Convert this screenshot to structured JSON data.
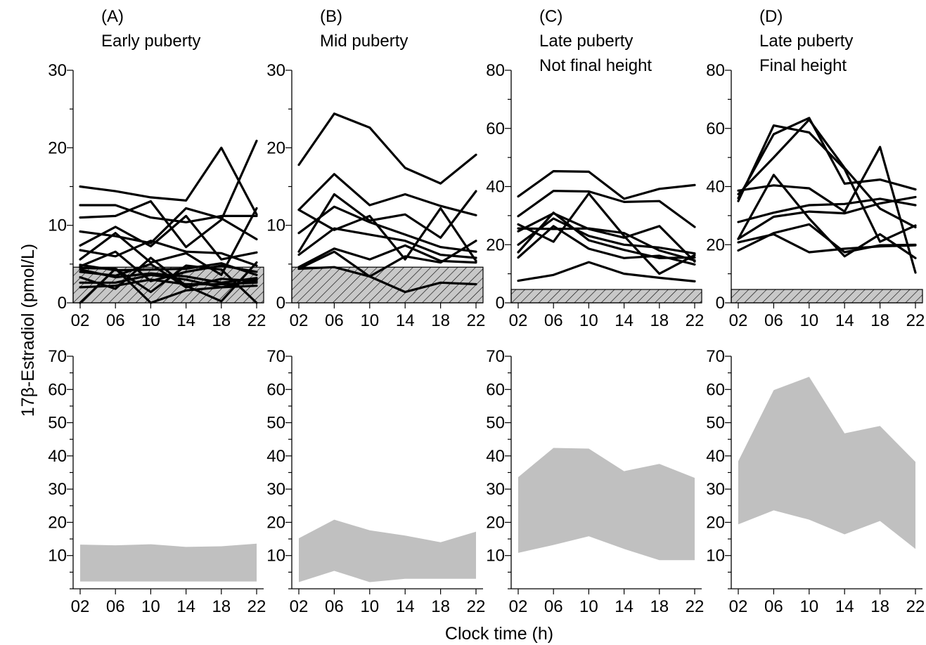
{
  "ylabel": "17β-Estradiol (pmol/L)",
  "xlabel": "Clock time (h)",
  "chart_data": [
    {
      "type": "line",
      "panel": "(A)",
      "title": [
        "(A)",
        "Early puberty"
      ],
      "x": [
        "02",
        "06",
        "10",
        "14",
        "18",
        "22"
      ],
      "ylim": [
        0,
        30
      ],
      "yticks": [
        0,
        10,
        20,
        30
      ],
      "reference_band": [
        0,
        4.6
      ],
      "series": [
        {
          "values": [
            15.0,
            14.4,
            13.6,
            13.2,
            20.0,
            11.4
          ]
        },
        {
          "values": [
            12.6,
            12.6,
            11.0,
            10.4,
            11.2,
            11.2
          ]
        },
        {
          "values": [
            11.0,
            11.2,
            13.1,
            7.2,
            10.7,
            20.9
          ]
        },
        {
          "values": [
            9.2,
            8.6,
            7.7,
            12.2,
            10.9,
            8.2
          ]
        },
        {
          "values": [
            7.4,
            9.8,
            7.3,
            11.2,
            5.6,
            6.5
          ]
        },
        {
          "values": [
            6.8,
            6.0,
            8.0,
            6.6,
            6.4,
            4.8
          ]
        },
        {
          "values": [
            5.6,
            9.0,
            5.2,
            6.4,
            3.6,
            12.2
          ]
        },
        {
          "values": [
            4.9,
            4.2,
            4.3,
            4.4,
            5.1,
            3.6
          ]
        },
        {
          "values": [
            4.7,
            6.6,
            2.8,
            4.0,
            4.8,
            4.0
          ]
        },
        {
          "values": [
            4.3,
            3.3,
            3.8,
            3.4,
            2.6,
            3.2
          ]
        },
        {
          "values": [
            4.0,
            3.5,
            5.0,
            2.0,
            3.1,
            2.8
          ]
        },
        {
          "values": [
            3.3,
            1.8,
            5.8,
            2.2,
            0.2,
            5.2
          ]
        },
        {
          "values": [
            2.6,
            2.6,
            3.6,
            3.0,
            2.0,
            2.2
          ]
        },
        {
          "values": [
            2.0,
            2.2,
            3.0,
            2.4,
            2.4,
            2.6
          ]
        },
        {
          "values": [
            0.0,
            4.4,
            0.0,
            1.6,
            2.0,
            3.0
          ]
        },
        {
          "values": [
            4.5,
            4.4,
            1.4,
            4.8,
            4.3,
            0.0
          ]
        }
      ]
    },
    {
      "type": "line",
      "panel": "(B)",
      "title": [
        "(B)",
        "Mid puberty"
      ],
      "x": [
        "02",
        "06",
        "10",
        "14",
        "18",
        "22"
      ],
      "ylim": [
        0,
        30
      ],
      "yticks": [
        0,
        10,
        20,
        30
      ],
      "reference_band": [
        0,
        4.6
      ],
      "series": [
        {
          "values": [
            17.8,
            24.4,
            22.6,
            17.4,
            15.4,
            19.1
          ]
        },
        {
          "values": [
            12.0,
            16.6,
            12.6,
            14.0,
            12.5,
            11.3
          ]
        },
        {
          "values": [
            12.0,
            9.4,
            11.2,
            5.6,
            12.2,
            5.4
          ]
        },
        {
          "values": [
            9.0,
            12.4,
            10.4,
            8.8,
            7.2,
            6.6
          ]
        },
        {
          "values": [
            6.6,
            14.0,
            10.6,
            11.4,
            8.4,
            14.4
          ]
        },
        {
          "values": [
            6.2,
            9.6,
            8.8,
            8.0,
            6.2,
            5.8
          ]
        },
        {
          "values": [
            4.6,
            7.0,
            5.6,
            7.4,
            5.4,
            5.2
          ]
        },
        {
          "values": [
            4.4,
            6.6,
            3.4,
            6.0,
            5.2,
            8.0
          ]
        },
        {
          "values": [
            4.4,
            4.6,
            3.4,
            1.4,
            2.6,
            2.4
          ]
        }
      ]
    },
    {
      "type": "line",
      "panel": "(C)",
      "title": [
        "(C)",
        "Late puberty",
        "Not final height"
      ],
      "x": [
        "02",
        "06",
        "10",
        "14",
        "18",
        "22"
      ],
      "ylim": [
        0,
        80
      ],
      "yticks": [
        0,
        20,
        40,
        60,
        80
      ],
      "reference_band": [
        0,
        4.6
      ],
      "series": [
        {
          "values": [
            36.6,
            45.3,
            45.1,
            35.8,
            39.2,
            40.5
          ]
        },
        {
          "values": [
            29.8,
            38.5,
            38.3,
            34.7,
            35.0,
            26.1
          ]
        },
        {
          "values": [
            25.6,
            25.4,
            25.6,
            24.0,
            18.0,
            14.6
          ]
        },
        {
          "values": [
            24.6,
            30.8,
            25.4,
            22.4,
            26.4,
            14.2
          ]
        },
        {
          "values": [
            20.0,
            29.0,
            23.0,
            20.0,
            19.0,
            17.0
          ]
        },
        {
          "values": [
            17.4,
            31.0,
            21.5,
            18.2,
            15.4,
            15.6
          ]
        },
        {
          "values": [
            15.6,
            26.4,
            18.6,
            15.4,
            16.2,
            13.2
          ]
        },
        {
          "values": [
            27.0,
            21.0,
            37.6,
            23.0,
            10.0,
            16.4
          ]
        },
        {
          "values": [
            7.6,
            9.6,
            14.0,
            10.0,
            8.6,
            7.4
          ]
        }
      ]
    },
    {
      "type": "line",
      "panel": "(D)",
      "title": [
        "(D)",
        "Late puberty",
        "Final height"
      ],
      "x": [
        "02",
        "06",
        "10",
        "14",
        "18",
        "22"
      ],
      "ylim": [
        0,
        80
      ],
      "yticks": [
        0,
        20,
        40,
        60,
        80
      ],
      "reference_band": [
        0,
        4.6
      ],
      "series": [
        {
          "values": [
            35.0,
            61.0,
            58.6,
            46.0,
            21.0,
            26.6
          ]
        },
        {
          "values": [
            36.0,
            58.0,
            63.6,
            41.0,
            42.4,
            39.0
          ]
        },
        {
          "values": [
            37.4,
            50.0,
            63.0,
            46.4,
            32.4,
            26.0
          ]
        },
        {
          "values": [
            38.6,
            40.4,
            39.4,
            31.4,
            53.6,
            10.4
          ]
        },
        {
          "values": [
            27.8,
            31.0,
            33.6,
            34.0,
            35.8,
            33.6
          ]
        },
        {
          "values": [
            22.0,
            44.0,
            29.0,
            16.0,
            23.6,
            15.4
          ]
        },
        {
          "values": [
            22.0,
            29.6,
            31.4,
            30.8,
            34.2,
            36.4
          ]
        },
        {
          "values": [
            18.0,
            24.0,
            27.0,
            17.4,
            19.8,
            20.0
          ]
        },
        {
          "values": [
            20.8,
            23.6,
            17.4,
            18.6,
            19.4,
            19.8
          ]
        }
      ]
    },
    {
      "type": "area",
      "panel": "(A) range",
      "x": [
        "02",
        "06",
        "10",
        "14",
        "18",
        "22"
      ],
      "ylim": [
        0,
        70
      ],
      "yticks": [
        10,
        20,
        30,
        40,
        50,
        60,
        70
      ],
      "upper": [
        13.3,
        13.1,
        13.4,
        12.6,
        12.8,
        13.6
      ],
      "lower": [
        2.2,
        2.2,
        2.2,
        2.2,
        2.2,
        2.2
      ],
      "color": "#c0c0c0"
    },
    {
      "type": "area",
      "panel": "(B) range",
      "x": [
        "02",
        "06",
        "10",
        "14",
        "18",
        "22"
      ],
      "ylim": [
        0,
        70
      ],
      "yticks": [
        10,
        20,
        30,
        40,
        50,
        60,
        70
      ],
      "upper": [
        15.2,
        20.8,
        17.6,
        16.0,
        14.0,
        17.2
      ],
      "lower": [
        2.0,
        5.4,
        2.0,
        3.0,
        3.0,
        3.0
      ],
      "color": "#c0c0c0"
    },
    {
      "type": "area",
      "panel": "(C) range",
      "x": [
        "02",
        "06",
        "10",
        "14",
        "18",
        "22"
      ],
      "ylim": [
        0,
        70
      ],
      "yticks": [
        10,
        20,
        30,
        40,
        50,
        60,
        70
      ],
      "upper": [
        33.6,
        42.4,
        42.2,
        35.4,
        37.6,
        33.4
      ],
      "lower": [
        10.8,
        13.2,
        15.8,
        12.0,
        8.6,
        8.6
      ],
      "color": "#c0c0c0"
    },
    {
      "type": "area",
      "panel": "(D) range",
      "x": [
        "02",
        "06",
        "10",
        "14",
        "18",
        "22"
      ],
      "ylim": [
        0,
        70
      ],
      "yticks": [
        10,
        20,
        30,
        40,
        50,
        60,
        70
      ],
      "upper": [
        38.4,
        59.8,
        63.8,
        46.8,
        49.0,
        38.2
      ],
      "lower": [
        19.4,
        23.6,
        20.8,
        16.4,
        20.4,
        12.0
      ],
      "color": "#c0c0c0"
    }
  ]
}
